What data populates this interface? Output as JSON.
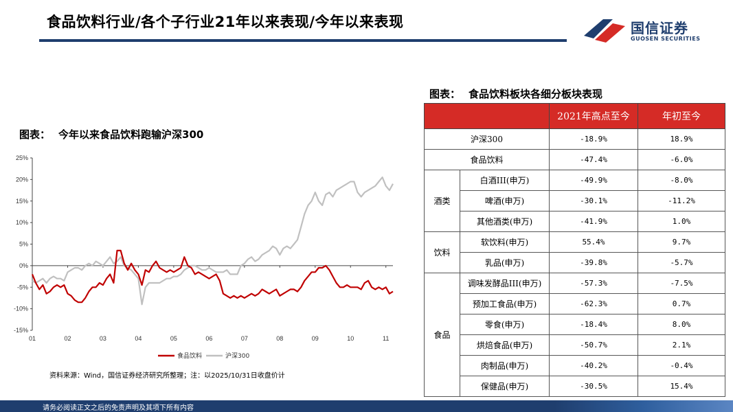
{
  "header": {
    "title": "食品饮料行业/各个子行业21年以来表现/今年以来表现",
    "logo_cn": "国信证券",
    "logo_en": "GUOSEN SECURITIES"
  },
  "left_chart": {
    "heading_label": "图表：",
    "heading_text": "今年以来食品饮料跑输沪深300",
    "source": "资料来源：Wind，国信证券经济研究所整理；注：以2025/10/31日收盘价计"
  },
  "chart_data": {
    "type": "line",
    "title": "",
    "xlabel": "",
    "ylabel": "",
    "y_ticks": [
      "25%",
      "20%",
      "15%",
      "10%",
      "5%",
      "0%",
      "-5%",
      "-10%",
      "-15%"
    ],
    "ylim": [
      -15,
      25
    ],
    "x_ticks": [
      "01",
      "02",
      "03",
      "04",
      "05",
      "06",
      "07",
      "08",
      "09",
      "10",
      "11"
    ],
    "xlim": [
      1,
      11.2
    ],
    "legend_placement": "bottom",
    "grid": false,
    "series": [
      {
        "name": "食品饮料",
        "color": "#c00000",
        "points": [
          [
            1.0,
            -2
          ],
          [
            1.1,
            -4
          ],
          [
            1.2,
            -5.5
          ],
          [
            1.3,
            -4.5
          ],
          [
            1.4,
            -6.5
          ],
          [
            1.5,
            -6
          ],
          [
            1.6,
            -5
          ],
          [
            1.7,
            -4.5
          ],
          [
            1.8,
            -5
          ],
          [
            1.9,
            -4.5
          ],
          [
            2.0,
            -6.5
          ],
          [
            2.1,
            -7
          ],
          [
            2.2,
            -8
          ],
          [
            2.3,
            -8.5
          ],
          [
            2.4,
            -8.5
          ],
          [
            2.5,
            -7.5
          ],
          [
            2.6,
            -6
          ],
          [
            2.7,
            -5
          ],
          [
            2.8,
            -5
          ],
          [
            2.9,
            -4
          ],
          [
            3.0,
            -4.5
          ],
          [
            3.1,
            -3
          ],
          [
            3.2,
            -2
          ],
          [
            3.3,
            -4
          ],
          [
            3.4,
            3.5
          ],
          [
            3.5,
            3.5
          ],
          [
            3.6,
            0.5
          ],
          [
            3.7,
            -1
          ],
          [
            3.8,
            0.5
          ],
          [
            3.9,
            -1
          ],
          [
            4.0,
            -2
          ],
          [
            4.1,
            -4.5
          ],
          [
            4.2,
            -1
          ],
          [
            4.3,
            -1.5
          ],
          [
            4.4,
            0
          ],
          [
            4.5,
            1
          ],
          [
            4.6,
            -0.5
          ],
          [
            4.7,
            -1
          ],
          [
            4.8,
            -1.5
          ],
          [
            4.9,
            -1
          ],
          [
            5.0,
            -1.5
          ],
          [
            5.1,
            -1
          ],
          [
            5.2,
            -0.5
          ],
          [
            5.3,
            2
          ],
          [
            5.4,
            0
          ],
          [
            5.5,
            -0.5
          ],
          [
            5.6,
            -2
          ],
          [
            5.7,
            -1.5
          ],
          [
            5.8,
            -2
          ],
          [
            5.9,
            -2.5
          ],
          [
            6.0,
            -3
          ],
          [
            6.1,
            -2.5
          ],
          [
            6.2,
            -2
          ],
          [
            6.3,
            -3.5
          ],
          [
            6.4,
            -6.5
          ],
          [
            6.5,
            -7
          ],
          [
            6.6,
            -7.5
          ],
          [
            6.7,
            -7
          ],
          [
            6.8,
            -7.5
          ],
          [
            6.9,
            -7
          ],
          [
            7.0,
            -7.5
          ],
          [
            7.1,
            -7
          ],
          [
            7.2,
            -6.5
          ],
          [
            7.3,
            -7
          ],
          [
            7.4,
            -6.5
          ],
          [
            7.5,
            -5.5
          ],
          [
            7.6,
            -6
          ],
          [
            7.7,
            -6.5
          ],
          [
            7.8,
            -6
          ],
          [
            7.9,
            -5.5
          ],
          [
            8.0,
            -7
          ],
          [
            8.1,
            -6.5
          ],
          [
            8.2,
            -6
          ],
          [
            8.3,
            -5.5
          ],
          [
            8.4,
            -5.5
          ],
          [
            8.5,
            -6
          ],
          [
            8.6,
            -5
          ],
          [
            8.7,
            -3.5
          ],
          [
            8.8,
            -2.5
          ],
          [
            8.9,
            -1.5
          ],
          [
            9.0,
            -1.5
          ],
          [
            9.1,
            -0.5
          ],
          [
            9.2,
            -0.5
          ],
          [
            9.3,
            0
          ],
          [
            9.4,
            -1
          ],
          [
            9.5,
            -2.5
          ],
          [
            9.6,
            -4
          ],
          [
            9.7,
            -5
          ],
          [
            9.8,
            -5
          ],
          [
            9.9,
            -4.5
          ],
          [
            10.0,
            -5
          ],
          [
            10.1,
            -5
          ],
          [
            10.2,
            -5
          ],
          [
            10.3,
            -5.5
          ],
          [
            10.4,
            -4
          ],
          [
            10.5,
            -3.5
          ],
          [
            10.6,
            -5
          ],
          [
            10.7,
            -5.5
          ],
          [
            10.8,
            -5
          ],
          [
            10.9,
            -5.5
          ],
          [
            11.0,
            -5
          ],
          [
            11.1,
            -6.5
          ],
          [
            11.2,
            -6
          ]
        ]
      },
      {
        "name": "沪深300",
        "color": "#c0c0c0",
        "points": [
          [
            1.0,
            -3.5
          ],
          [
            1.1,
            -4
          ],
          [
            1.2,
            -3.5
          ],
          [
            1.3,
            -3
          ],
          [
            1.4,
            -4
          ],
          [
            1.5,
            -3
          ],
          [
            1.6,
            -2.5
          ],
          [
            1.7,
            -3
          ],
          [
            1.8,
            -3
          ],
          [
            1.9,
            -3.5
          ],
          [
            2.0,
            -1.5
          ],
          [
            2.1,
            -1
          ],
          [
            2.2,
            -0.5
          ],
          [
            2.3,
            -0.5
          ],
          [
            2.4,
            -1
          ],
          [
            2.5,
            0
          ],
          [
            2.6,
            0.5
          ],
          [
            2.7,
            0
          ],
          [
            2.8,
            1
          ],
          [
            2.9,
            0.5
          ],
          [
            3.0,
            0
          ],
          [
            3.1,
            1
          ],
          [
            3.2,
            2
          ],
          [
            3.3,
            0.5
          ],
          [
            3.4,
            1
          ],
          [
            3.5,
            2
          ],
          [
            3.6,
            0
          ],
          [
            3.7,
            -0.5
          ],
          [
            3.8,
            -1
          ],
          [
            3.9,
            -2
          ],
          [
            4.0,
            -3
          ],
          [
            4.1,
            -9
          ],
          [
            4.2,
            -5
          ],
          [
            4.3,
            -4
          ],
          [
            4.4,
            -4
          ],
          [
            4.5,
            -4
          ],
          [
            4.6,
            -4
          ],
          [
            4.7,
            -3.5
          ],
          [
            4.8,
            -3
          ],
          [
            4.9,
            -3
          ],
          [
            5.0,
            -2.5
          ],
          [
            5.1,
            -2.5
          ],
          [
            5.2,
            -2
          ],
          [
            5.3,
            -1
          ],
          [
            5.4,
            -0.5
          ],
          [
            5.5,
            0
          ],
          [
            5.6,
            0
          ],
          [
            5.7,
            -0.5
          ],
          [
            5.8,
            -1
          ],
          [
            5.9,
            -1
          ],
          [
            6.0,
            -0.5
          ],
          [
            6.1,
            -1
          ],
          [
            6.2,
            -1.5
          ],
          [
            6.3,
            -1.5
          ],
          [
            6.4,
            -1.5
          ],
          [
            6.5,
            -1
          ],
          [
            6.6,
            -2
          ],
          [
            6.7,
            -2
          ],
          [
            6.8,
            -2
          ],
          [
            6.9,
            0
          ],
          [
            7.0,
            0.5
          ],
          [
            7.1,
            1.5
          ],
          [
            7.2,
            2
          ],
          [
            7.3,
            1
          ],
          [
            7.4,
            1.5
          ],
          [
            7.5,
            2.5
          ],
          [
            7.6,
            3
          ],
          [
            7.7,
            3.5
          ],
          [
            7.8,
            4.5
          ],
          [
            7.9,
            4
          ],
          [
            8.0,
            2.5
          ],
          [
            8.1,
            4
          ],
          [
            8.2,
            4.5
          ],
          [
            8.3,
            4
          ],
          [
            8.4,
            5
          ],
          [
            8.5,
            6
          ],
          [
            8.6,
            9
          ],
          [
            8.7,
            12
          ],
          [
            8.8,
            14
          ],
          [
            8.9,
            15
          ],
          [
            9.0,
            17
          ],
          [
            9.1,
            15
          ],
          [
            9.2,
            14
          ],
          [
            9.3,
            16.5
          ],
          [
            9.4,
            17
          ],
          [
            9.5,
            16
          ],
          [
            9.6,
            17.5
          ],
          [
            9.7,
            18
          ],
          [
            9.8,
            18.5
          ],
          [
            9.9,
            19
          ],
          [
            10.0,
            19.5
          ],
          [
            10.1,
            19.5
          ],
          [
            10.2,
            17
          ],
          [
            10.3,
            16
          ],
          [
            10.4,
            17
          ],
          [
            10.5,
            17.5
          ],
          [
            10.6,
            18
          ],
          [
            10.7,
            18.5
          ],
          [
            10.8,
            19.5
          ],
          [
            10.9,
            20.5
          ],
          [
            11.0,
            18.5
          ],
          [
            11.1,
            17.5
          ],
          [
            11.2,
            19
          ]
        ]
      }
    ]
  },
  "table": {
    "heading_label": "图表：",
    "heading_text": "食品饮料板块各细分板块表现",
    "columns": [
      "",
      "2021年高点至今",
      "年初至今"
    ],
    "rows": [
      {
        "name": "沪深300",
        "since_2021_high": "-18.9%",
        "ytd": "18.9%"
      },
      {
        "name": "食品饮料",
        "since_2021_high": "-47.4%",
        "ytd": "-6.0%"
      }
    ],
    "groups": [
      {
        "label": "酒类",
        "rows": [
          {
            "name": "白酒III(申万)",
            "since_2021_high": "-49.9%",
            "ytd": "-8.0%"
          },
          {
            "name": "啤酒(申万)",
            "since_2021_high": "-30.1%",
            "ytd": "-11.2%"
          },
          {
            "name": "其他酒类(申万)",
            "since_2021_high": "-41.9%",
            "ytd": "1.0%"
          }
        ]
      },
      {
        "label": "饮料",
        "rows": [
          {
            "name": "软饮料(申万)",
            "since_2021_high": "55.4%",
            "ytd": "9.7%"
          },
          {
            "name": "乳品(申万)",
            "since_2021_high": "-39.8%",
            "ytd": "-5.7%"
          }
        ]
      },
      {
        "label": "食品",
        "rows": [
          {
            "name": "调味发酵品III(申万)",
            "since_2021_high": "-57.3%",
            "ytd": "-7.5%"
          },
          {
            "name": "预加工食品(申万)",
            "since_2021_high": "-62.3%",
            "ytd": "0.7%"
          },
          {
            "name": "零食(申万)",
            "since_2021_high": "-18.4%",
            "ytd": "8.0%"
          },
          {
            "name": "烘焙食品(申万)",
            "since_2021_high": "-50.7%",
            "ytd": "2.1%"
          },
          {
            "name": "肉制品(申万)",
            "since_2021_high": "-40.2%",
            "ytd": "-0.4%"
          },
          {
            "name": "保健品(申万)",
            "since_2021_high": "-30.5%",
            "ytd": "15.4%"
          }
        ]
      }
    ]
  },
  "footer": {
    "text": "请务必阅读正文之后的免责声明及其项下所有内容"
  },
  "colors": {
    "brand_navy": "#1f3e6e",
    "header_red": "#d52b26",
    "series_red": "#c00000",
    "series_gray": "#c0c0c0"
  }
}
